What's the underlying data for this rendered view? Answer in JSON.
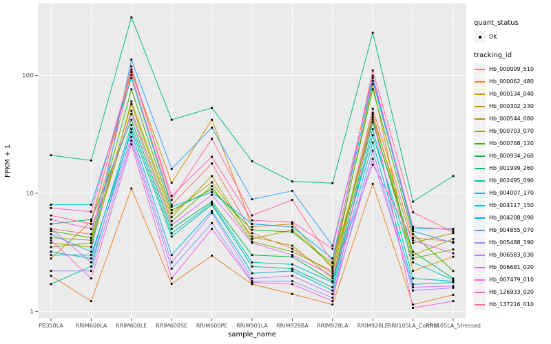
{
  "figure": {
    "legend": {
      "quant_status_title": "quant_status",
      "ok_label": "OK",
      "tracking_id_title": "tracking_id"
    }
  },
  "chart_data": {
    "type": "line",
    "title": "",
    "xlabel": "sample_name",
    "ylabel": "FPKM + 1",
    "y_scale": "log10",
    "ylim": [
      1,
      400
    ],
    "y_ticks": [
      1,
      10,
      100
    ],
    "y_minor_ticks": [
      3.162,
      31.62,
      316.2
    ],
    "grid": true,
    "legend_position": "right",
    "point_marker": {
      "label": "OK",
      "shape": "square",
      "color": "#000000"
    },
    "panel_background": "#ebebeb",
    "grid_color": "#ffffff",
    "tick_label_color": "#4d4d4d",
    "categories": [
      "PB350LA",
      "RRIM600LA",
      "RRIM600LE",
      "RRIM600SE",
      "RRIM600PE",
      "RRIM901LA",
      "RRIM928BA",
      "RRIM928LA",
      "RRIM928LE",
      "RRII105LA_Control",
      "RRII105LA_Stressed"
    ],
    "series": [
      {
        "name": "Hb_000009_510",
        "color": "#F8766D",
        "values": [
          5.0,
          4.5,
          101,
          8.0,
          17.9,
          4.6,
          3.4,
          2.1,
          52,
          4.2,
          3.9
        ]
      },
      {
        "name": "Hb_000062_480",
        "color": "#E88526",
        "values": [
          2.0,
          1.22,
          11,
          1.71,
          2.96,
          1.7,
          1.4,
          1.14,
          12,
          1.14,
          1.38
        ]
      },
      {
        "name": "Hb_000134_040",
        "color": "#D89000",
        "values": [
          2.8,
          5.8,
          107,
          12.3,
          42,
          5.2,
          5.5,
          2.3,
          84,
          2.2,
          2.9
        ]
      },
      {
        "name": "Hb_000302_230",
        "color": "#C09B00",
        "values": [
          3.8,
          3.5,
          60,
          6.8,
          12.4,
          4.3,
          3.6,
          1.9,
          48,
          3.0,
          4.1
        ]
      },
      {
        "name": "Hb_000544_080",
        "color": "#A3A500",
        "values": [
          4.2,
          4.0,
          57,
          6.3,
          14,
          4.1,
          4.9,
          2.4,
          44,
          3.8,
          4.6
        ]
      },
      {
        "name": "Hb_000703_070",
        "color": "#7CAE00",
        "values": [
          3.5,
          3.8,
          50,
          5.8,
          11.5,
          3.9,
          3.2,
          2.2,
          42,
          2.8,
          3.35
        ]
      },
      {
        "name": "Hb_000768_120",
        "color": "#39B600",
        "values": [
          4.8,
          4.2,
          76,
          7.2,
          10.8,
          4.9,
          4.7,
          2.55,
          76,
          4.5,
          2.2
        ]
      },
      {
        "name": "Hb_000934_260",
        "color": "#00BB4E",
        "values": [
          5.5,
          6.0,
          42,
          5.0,
          8.5,
          3.0,
          2.9,
          1.8,
          40,
          3.2,
          1.9
        ]
      },
      {
        "name": "Hb_001999_260",
        "color": "#00BF7D",
        "values": [
          21,
          19,
          310,
          42,
          53,
          18.7,
          12.6,
          12.2,
          230,
          8.5,
          14
        ]
      },
      {
        "name": "Hb_002495_090",
        "color": "#00C1A3",
        "values": [
          1.7,
          2.4,
          35,
          4.3,
          8.0,
          2.4,
          2.3,
          1.6,
          35,
          1.9,
          1.8
        ]
      },
      {
        "name": "Hb_004007_170",
        "color": "#00BFC4",
        "values": [
          3.2,
          2.8,
          38,
          4.6,
          8.2,
          2.6,
          2.5,
          1.76,
          31,
          2.6,
          1.85
        ]
      },
      {
        "name": "Hb_004117_150",
        "color": "#00BAE0",
        "values": [
          3.0,
          3.0,
          33,
          3.0,
          7.1,
          2.1,
          2.2,
          1.5,
          27,
          1.69,
          1.76
        ]
      },
      {
        "name": "Hb_004208_090",
        "color": "#00B0F6",
        "values": [
          8.0,
          8.0,
          95,
          7.7,
          10.2,
          5.5,
          5.2,
          2.8,
          90,
          5.0,
          5.0
        ]
      },
      {
        "name": "Hb_004855_070",
        "color": "#35A2FF",
        "values": [
          4.5,
          3.2,
          136,
          16.1,
          36,
          8.9,
          10.5,
          3.6,
          95,
          4.8,
          3.8
        ]
      },
      {
        "name": "Hb_005488_190",
        "color": "#9590FF",
        "values": [
          2.2,
          2.2,
          28,
          2.3,
          5.6,
          1.8,
          1.8,
          1.3,
          23,
          1.5,
          1.58
        ]
      },
      {
        "name": "Hb_006583_030",
        "color": "#C77CFF",
        "values": [
          5.0,
          2.6,
          30,
          2.6,
          6.8,
          1.9,
          2.0,
          1.4,
          19.6,
          1.6,
          1.64
        ]
      },
      {
        "name": "Hb_006681_020",
        "color": "#E76BF3",
        "values": [
          6.0,
          5.0,
          47,
          5.4,
          9.7,
          3.8,
          3.0,
          2.0,
          17.5,
          4.0,
          3.1
        ]
      },
      {
        "name": "Hb_007479_010",
        "color": "#FA62DB",
        "values": [
          4.0,
          1.9,
          26,
          1.9,
          5.0,
          1.76,
          1.7,
          1.22,
          46,
          1.07,
          1.22
        ]
      },
      {
        "name": "Hb_126933_020",
        "color": "#FF62BC",
        "values": [
          7.5,
          7.0,
          112,
          9.5,
          20.4,
          5.9,
          5.7,
          3.4,
          99,
          5.2,
          4.9
        ]
      },
      {
        "name": "Hb_137216_010",
        "color": "#FF6A98",
        "values": [
          6.5,
          5.5,
          119,
          8.8,
          29,
          6.5,
          8.8,
          2.6,
          110,
          6.9,
          4.7
        ]
      }
    ]
  }
}
